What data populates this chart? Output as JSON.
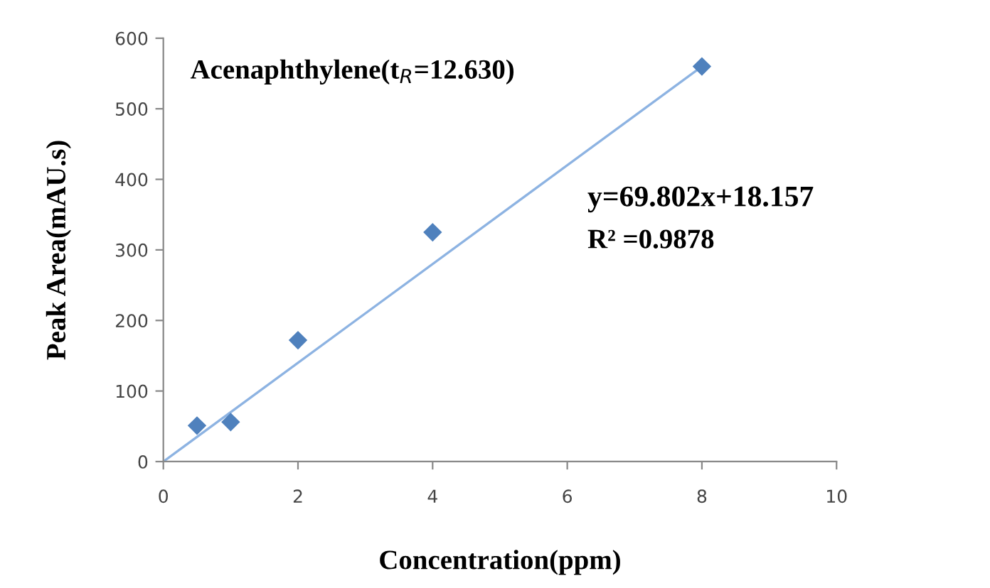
{
  "chart_data": {
    "type": "scatter",
    "title": "Acenaphthylene(t$_{R}$=12.630)",
    "xlabel": "Concentration(ppm)",
    "ylabel": "Peak Area(mAU.s)",
    "annotations": [
      "y=69.802x+18.157",
      "R² =0.9878"
    ],
    "series": [
      {
        "color": "#4f81bd",
        "marker": "diamond",
        "x": [
          0.5,
          1,
          2,
          4,
          8
        ],
        "values": [
          51,
          56,
          172,
          325,
          560
        ]
      },
      {
        "type": "line",
        "color": "#8db3e2",
        "marker": "none",
        "x": [
          0,
          8
        ],
        "values": [
          0,
          560
        ]
      }
    ],
    "xlim": [
      0,
      10
    ],
    "xticks": [
      0,
      2,
      4,
      6,
      8,
      10
    ],
    "ylim": [
      0,
      600
    ],
    "yticks": [
      0,
      100,
      200,
      300,
      400,
      500,
      600
    ],
    "grid": false,
    "legend": false
  }
}
